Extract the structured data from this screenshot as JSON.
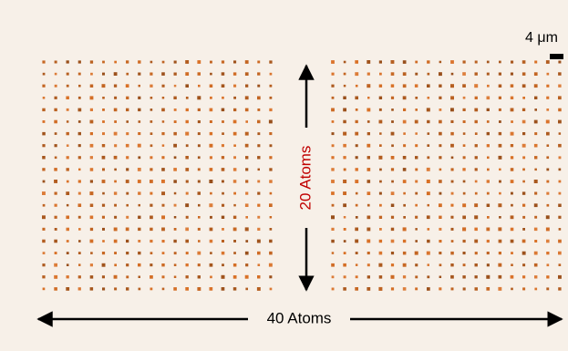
{
  "scale_bar": {
    "label": "4 μm"
  },
  "annotations": {
    "vertical": "20 Atoms",
    "horizontal": "40 Atoms"
  }
}
